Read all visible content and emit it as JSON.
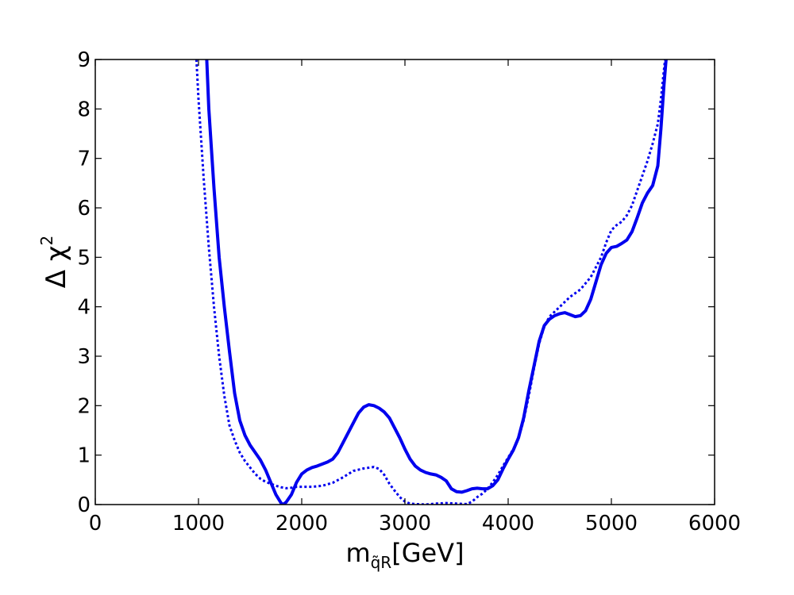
{
  "chart_data": {
    "type": "line",
    "title": "",
    "xlabel": "m",
    "xlabel_sub": "q̃R",
    "xlabel_unit": "[GeV]",
    "ylabel_base": "Δ χ",
    "ylabel_sup": "2",
    "xlim": [
      0,
      6000
    ],
    "ylim": [
      0,
      9
    ],
    "xticks": [
      "0",
      "1000",
      "2000",
      "3000",
      "4000",
      "5000",
      "6000"
    ],
    "yticks": [
      "0",
      "1",
      "2",
      "3",
      "4",
      "5",
      "6",
      "7",
      "8",
      "9"
    ],
    "grid": false,
    "series": [
      {
        "style": "solid",
        "color": "#0000ee",
        "points": [
          [
            1080,
            9.0
          ],
          [
            1100,
            8.0
          ],
          [
            1150,
            6.4
          ],
          [
            1200,
            5.0
          ],
          [
            1250,
            4.0
          ],
          [
            1300,
            3.1
          ],
          [
            1350,
            2.25
          ],
          [
            1400,
            1.7
          ],
          [
            1450,
            1.4
          ],
          [
            1500,
            1.2
          ],
          [
            1550,
            1.05
          ],
          [
            1600,
            0.9
          ],
          [
            1650,
            0.7
          ],
          [
            1700,
            0.45
          ],
          [
            1750,
            0.2
          ],
          [
            1800,
            0.03
          ],
          [
            1820,
            0.0
          ],
          [
            1850,
            0.05
          ],
          [
            1900,
            0.2
          ],
          [
            1950,
            0.45
          ],
          [
            2000,
            0.62
          ],
          [
            2050,
            0.7
          ],
          [
            2100,
            0.75
          ],
          [
            2150,
            0.78
          ],
          [
            2200,
            0.82
          ],
          [
            2250,
            0.86
          ],
          [
            2300,
            0.92
          ],
          [
            2350,
            1.05
          ],
          [
            2400,
            1.25
          ],
          [
            2450,
            1.45
          ],
          [
            2500,
            1.65
          ],
          [
            2550,
            1.85
          ],
          [
            2600,
            1.97
          ],
          [
            2650,
            2.02
          ],
          [
            2700,
            2.0
          ],
          [
            2750,
            1.95
          ],
          [
            2800,
            1.87
          ],
          [
            2850,
            1.75
          ],
          [
            2900,
            1.55
          ],
          [
            2950,
            1.35
          ],
          [
            3000,
            1.12
          ],
          [
            3050,
            0.92
          ],
          [
            3100,
            0.78
          ],
          [
            3150,
            0.7
          ],
          [
            3200,
            0.65
          ],
          [
            3250,
            0.62
          ],
          [
            3300,
            0.6
          ],
          [
            3350,
            0.55
          ],
          [
            3400,
            0.48
          ],
          [
            3450,
            0.32
          ],
          [
            3500,
            0.26
          ],
          [
            3550,
            0.25
          ],
          [
            3600,
            0.28
          ],
          [
            3650,
            0.32
          ],
          [
            3700,
            0.33
          ],
          [
            3750,
            0.32
          ],
          [
            3800,
            0.32
          ],
          [
            3850,
            0.38
          ],
          [
            3900,
            0.5
          ],
          [
            3950,
            0.72
          ],
          [
            4000,
            0.92
          ],
          [
            4050,
            1.1
          ],
          [
            4100,
            1.35
          ],
          [
            4150,
            1.75
          ],
          [
            4200,
            2.3
          ],
          [
            4250,
            2.8
          ],
          [
            4300,
            3.3
          ],
          [
            4350,
            3.62
          ],
          [
            4400,
            3.75
          ],
          [
            4450,
            3.82
          ],
          [
            4500,
            3.86
          ],
          [
            4550,
            3.88
          ],
          [
            4600,
            3.84
          ],
          [
            4650,
            3.8
          ],
          [
            4700,
            3.82
          ],
          [
            4750,
            3.92
          ],
          [
            4800,
            4.15
          ],
          [
            4850,
            4.5
          ],
          [
            4900,
            4.85
          ],
          [
            4950,
            5.08
          ],
          [
            5000,
            5.2
          ],
          [
            5050,
            5.22
          ],
          [
            5100,
            5.28
          ],
          [
            5150,
            5.35
          ],
          [
            5200,
            5.52
          ],
          [
            5250,
            5.8
          ],
          [
            5300,
            6.1
          ],
          [
            5350,
            6.3
          ],
          [
            5400,
            6.45
          ],
          [
            5450,
            6.85
          ],
          [
            5480,
            7.6
          ],
          [
            5510,
            8.5
          ],
          [
            5530,
            9.0
          ]
        ]
      },
      {
        "style": "dotted",
        "color": "#0000ee",
        "points": [
          [
            980,
            9.0
          ],
          [
            1000,
            8.2
          ],
          [
            1050,
            6.6
          ],
          [
            1100,
            5.2
          ],
          [
            1150,
            4.0
          ],
          [
            1200,
            3.0
          ],
          [
            1250,
            2.2
          ],
          [
            1300,
            1.6
          ],
          [
            1350,
            1.3
          ],
          [
            1400,
            1.05
          ],
          [
            1450,
            0.88
          ],
          [
            1500,
            0.75
          ],
          [
            1550,
            0.62
          ],
          [
            1600,
            0.52
          ],
          [
            1650,
            0.46
          ],
          [
            1700,
            0.42
          ],
          [
            1750,
            0.38
          ],
          [
            1800,
            0.35
          ],
          [
            1850,
            0.33
          ],
          [
            1900,
            0.34
          ],
          [
            1950,
            0.36
          ],
          [
            2000,
            0.36
          ],
          [
            2100,
            0.36
          ],
          [
            2200,
            0.38
          ],
          [
            2300,
            0.44
          ],
          [
            2400,
            0.55
          ],
          [
            2500,
            0.68
          ],
          [
            2600,
            0.73
          ],
          [
            2700,
            0.76
          ],
          [
            2750,
            0.72
          ],
          [
            2800,
            0.6
          ],
          [
            2850,
            0.42
          ],
          [
            2900,
            0.28
          ],
          [
            2950,
            0.15
          ],
          [
            3000,
            0.06
          ],
          [
            3050,
            0.02
          ],
          [
            3100,
            0.01
          ],
          [
            3200,
            0.0
          ],
          [
            3300,
            0.02
          ],
          [
            3400,
            0.03
          ],
          [
            3500,
            0.02
          ],
          [
            3600,
            0.01
          ],
          [
            3650,
            0.06
          ],
          [
            3700,
            0.15
          ],
          [
            3750,
            0.22
          ],
          [
            3800,
            0.32
          ],
          [
            3850,
            0.45
          ],
          [
            3900,
            0.6
          ],
          [
            3950,
            0.78
          ],
          [
            4000,
            0.95
          ],
          [
            4050,
            1.12
          ],
          [
            4100,
            1.35
          ],
          [
            4150,
            1.7
          ],
          [
            4200,
            2.2
          ],
          [
            4250,
            2.75
          ],
          [
            4300,
            3.25
          ],
          [
            4350,
            3.6
          ],
          [
            4400,
            3.8
          ],
          [
            4450,
            3.9
          ],
          [
            4500,
            4.0
          ],
          [
            4550,
            4.1
          ],
          [
            4600,
            4.2
          ],
          [
            4700,
            4.35
          ],
          [
            4800,
            4.6
          ],
          [
            4900,
            5.0
          ],
          [
            4950,
            5.3
          ],
          [
            5000,
            5.55
          ],
          [
            5050,
            5.65
          ],
          [
            5100,
            5.72
          ],
          [
            5150,
            5.85
          ],
          [
            5200,
            6.05
          ],
          [
            5250,
            6.35
          ],
          [
            5300,
            6.65
          ],
          [
            5350,
            6.95
          ],
          [
            5400,
            7.3
          ],
          [
            5450,
            7.7
          ],
          [
            5480,
            8.2
          ],
          [
            5500,
            8.6
          ],
          [
            5520,
            9.0
          ]
        ]
      }
    ]
  }
}
